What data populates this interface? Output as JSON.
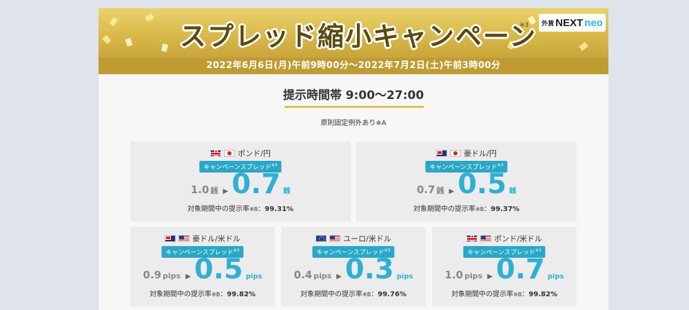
{
  "banner": {
    "title": "スプレッド縮小キャンペーン",
    "note": "※3",
    "logo_jp": "外貨",
    "logo_next": "NEXT",
    "logo_neo": "neo",
    "period": "2022年6月6日(月)午前9時00分～2022年7月2日(土)午前3時00分"
  },
  "hours": "提示時間帯 9:00～27:00",
  "rule_note": "原則固定例外あり※A",
  "badge_label": "キャンペーンスプレッド",
  "badge_note": "※3",
  "rate_label": "対象期間中の提示率",
  "rate_note": "※B",
  "cards": [
    {
      "pair": "ポンド/円",
      "flags": [
        "uk-flag-icon",
        "jp-flag-icon"
      ],
      "old": "1.0",
      "unit": "銭",
      "new": "0.7",
      "rate": "99.31%"
    },
    {
      "pair": "豪ドル/円",
      "flags": [
        "au-flag-icon",
        "jp-flag-icon"
      ],
      "old": "0.7",
      "unit": "銭",
      "new": "0.5",
      "rate": "99.37%"
    },
    {
      "pair": "豪ドル/米ドル",
      "flags": [
        "au-flag-icon",
        "us-flag-icon"
      ],
      "old": "0.9",
      "unit": "pips",
      "new": "0.5",
      "rate": "99.82%"
    },
    {
      "pair": "ユーロ/米ドル",
      "flags": [
        "eu-flag-icon",
        "us-flag-icon"
      ],
      "old": "0.4",
      "unit": "pips",
      "new": "0.3",
      "rate": "99.76%"
    },
    {
      "pair": "ポンド/米ドル",
      "flags": [
        "uk-flag-icon",
        "us-flag-icon"
      ],
      "old": "1.0",
      "unit": "pips",
      "new": "0.7",
      "rate": "99.82%"
    }
  ]
}
